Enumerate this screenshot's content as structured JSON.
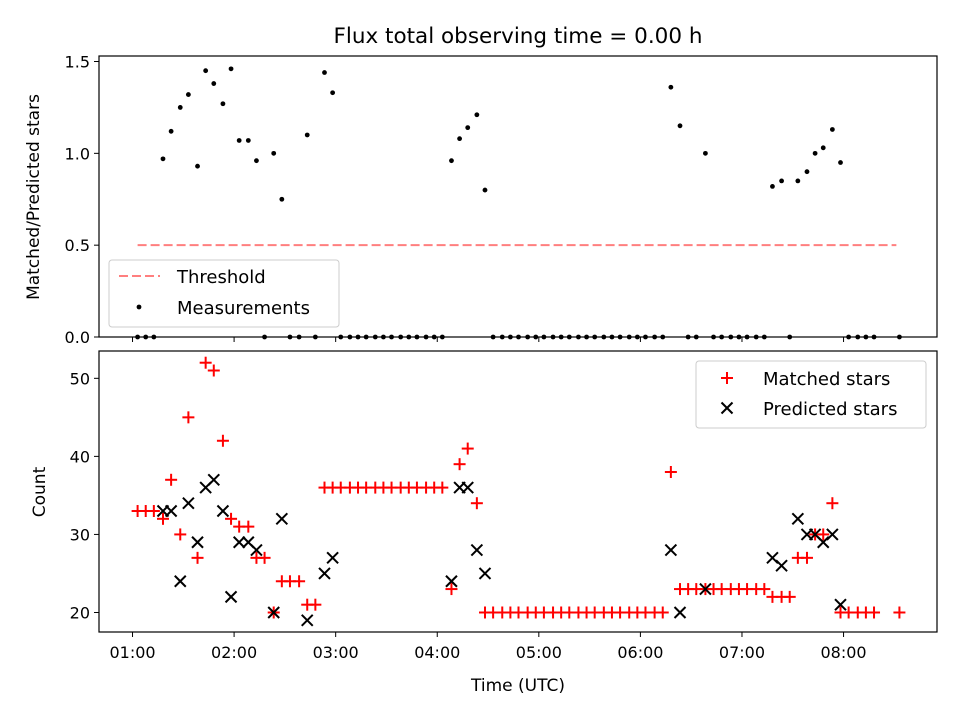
{
  "title": "Flux total observing time = 0.00 h",
  "xlabel": "Time (UTC)",
  "x_tick_labels": [
    "01:00",
    "02:00",
    "03:00",
    "04:00",
    "05:00",
    "06:00",
    "07:00",
    "08:00"
  ],
  "colors": {
    "matched": "#ff0000",
    "predicted": "#000000",
    "threshold": "#ff7f7f",
    "measurement": "#000000"
  },
  "chart_data": [
    {
      "type": "scatter",
      "ylabel": "Matched/Predicted stars",
      "x_unit": "hours UTC",
      "xlim": [
        0.67,
        8.92
      ],
      "ylim": [
        0,
        1.53
      ],
      "y_ticks": [
        "0.0",
        "0.5",
        "1.0",
        "1.5"
      ],
      "legend_position": "lower-left",
      "grid": false,
      "series": [
        {
          "name": "Threshold",
          "style": "dashed-line",
          "x": [
            1.05,
            8.52
          ],
          "y": [
            0.5,
            0.5
          ]
        },
        {
          "name": "Measurements",
          "style": "dot",
          "x": [
            1.05,
            1.13,
            1.21,
            1.3,
            1.38,
            1.47,
            1.55,
            1.64,
            1.72,
            1.8,
            1.89,
            1.97,
            2.05,
            2.14,
            2.22,
            2.3,
            2.39,
            2.47,
            2.55,
            2.64,
            2.72,
            2.8,
            2.89,
            2.97,
            3.05,
            3.14,
            3.22,
            3.3,
            3.39,
            3.47,
            3.55,
            3.64,
            3.72,
            3.8,
            3.89,
            3.97,
            4.05,
            4.14,
            4.22,
            4.3,
            4.39,
            4.47,
            4.55,
            4.64,
            4.72,
            4.8,
            4.89,
            4.97,
            5.05,
            5.14,
            5.22,
            5.3,
            5.39,
            5.47,
            5.55,
            5.64,
            5.72,
            5.8,
            5.89,
            5.97,
            6.05,
            6.14,
            6.22,
            6.3,
            6.39,
            6.47,
            6.55,
            6.64,
            6.72,
            6.8,
            6.89,
            6.97,
            7.05,
            7.14,
            7.22,
            7.3,
            7.39,
            7.47,
            7.55,
            7.64,
            7.72,
            7.8,
            7.89,
            7.97,
            8.05,
            8.14,
            8.22,
            8.3,
            8.55
          ],
          "y": [
            0,
            0,
            0,
            0.97,
            1.12,
            1.25,
            1.32,
            0.93,
            1.45,
            1.38,
            1.27,
            1.46,
            1.07,
            1.07,
            0.96,
            0,
            1.0,
            0.75,
            0,
            0,
            1.1,
            0,
            1.44,
            1.33,
            0,
            0,
            0,
            0,
            0,
            0,
            0,
            0,
            0,
            0,
            0,
            0,
            0,
            0.96,
            1.08,
            1.14,
            1.21,
            0.8,
            0,
            0,
            0,
            0,
            0,
            0,
            0,
            0,
            0,
            0,
            0,
            0,
            0,
            0,
            0,
            0,
            0,
            0,
            0,
            0,
            0,
            1.36,
            1.15,
            0,
            0,
            1.0,
            0,
            0,
            0,
            0,
            0,
            0,
            0,
            0.82,
            0.85,
            0,
            0.85,
            0.9,
            1.0,
            1.03,
            1.13,
            0.95,
            0,
            0,
            0,
            0,
            0
          ]
        }
      ]
    },
    {
      "type": "scatter",
      "ylabel": "Count",
      "x_unit": "hours UTC",
      "xlim": [
        0.67,
        8.92
      ],
      "ylim": [
        17.5,
        53.5
      ],
      "y_ticks": [
        "20",
        "30",
        "40",
        "50"
      ],
      "legend_position": "top-right",
      "grid": false,
      "series": [
        {
          "name": "Matched stars",
          "style": "plus",
          "x": [
            1.05,
            1.13,
            1.21,
            1.3,
            1.38,
            1.47,
            1.55,
            1.64,
            1.72,
            1.8,
            1.89,
            1.97,
            2.05,
            2.14,
            2.22,
            2.3,
            2.39,
            2.47,
            2.55,
            2.64,
            2.72,
            2.8,
            2.89,
            2.97,
            3.05,
            3.14,
            3.22,
            3.3,
            3.39,
            3.47,
            3.55,
            3.64,
            3.72,
            3.8,
            3.89,
            3.97,
            4.05,
            4.14,
            4.22,
            4.3,
            4.39,
            4.47,
            4.55,
            4.64,
            4.72,
            4.8,
            4.89,
            4.97,
            5.05,
            5.14,
            5.22,
            5.3,
            5.39,
            5.47,
            5.55,
            5.64,
            5.72,
            5.8,
            5.89,
            5.97,
            6.05,
            6.14,
            6.22,
            6.3,
            6.39,
            6.47,
            6.55,
            6.64,
            6.72,
            6.8,
            6.89,
            6.97,
            7.05,
            7.14,
            7.22,
            7.3,
            7.39,
            7.47,
            7.55,
            7.64,
            7.72,
            7.8,
            7.89,
            7.97,
            8.05,
            8.14,
            8.22,
            8.3,
            8.55
          ],
          "y": [
            33,
            33,
            33,
            32,
            37,
            30,
            45,
            27,
            52,
            51,
            42,
            32,
            31,
            31,
            27,
            27,
            20,
            24,
            24,
            24,
            21,
            21,
            36,
            36,
            36,
            36,
            36,
            36,
            36,
            36,
            36,
            36,
            36,
            36,
            36,
            36,
            36,
            23,
            39,
            41,
            34,
            20,
            20,
            20,
            20,
            20,
            20,
            20,
            20,
            20,
            20,
            20,
            20,
            20,
            20,
            20,
            20,
            20,
            20,
            20,
            20,
            20,
            20,
            38,
            23,
            23,
            23,
            23,
            23,
            23,
            23,
            23,
            23,
            23,
            23,
            22,
            22,
            22,
            27,
            27,
            30,
            30,
            34,
            20,
            20,
            20,
            20,
            20,
            20
          ]
        },
        {
          "name": "Predicted stars",
          "style": "x",
          "x": [
            1.3,
            1.38,
            1.47,
            1.55,
            1.64,
            1.72,
            1.8,
            1.89,
            1.97,
            2.05,
            2.14,
            2.22,
            2.39,
            2.47,
            2.72,
            2.89,
            2.97,
            4.14,
            4.22,
            4.3,
            4.39,
            4.47,
            6.3,
            6.39,
            6.64,
            7.3,
            7.39,
            7.55,
            7.64,
            7.72,
            7.8,
            7.89,
            7.97
          ],
          "y": [
            33,
            33,
            24,
            34,
            29,
            36,
            37,
            33,
            22,
            29,
            29,
            28,
            20,
            32,
            19,
            25,
            27,
            24,
            36,
            36,
            28,
            25,
            28,
            20,
            23,
            27,
            26,
            32,
            30,
            30,
            29,
            30,
            21
          ]
        }
      ]
    }
  ]
}
